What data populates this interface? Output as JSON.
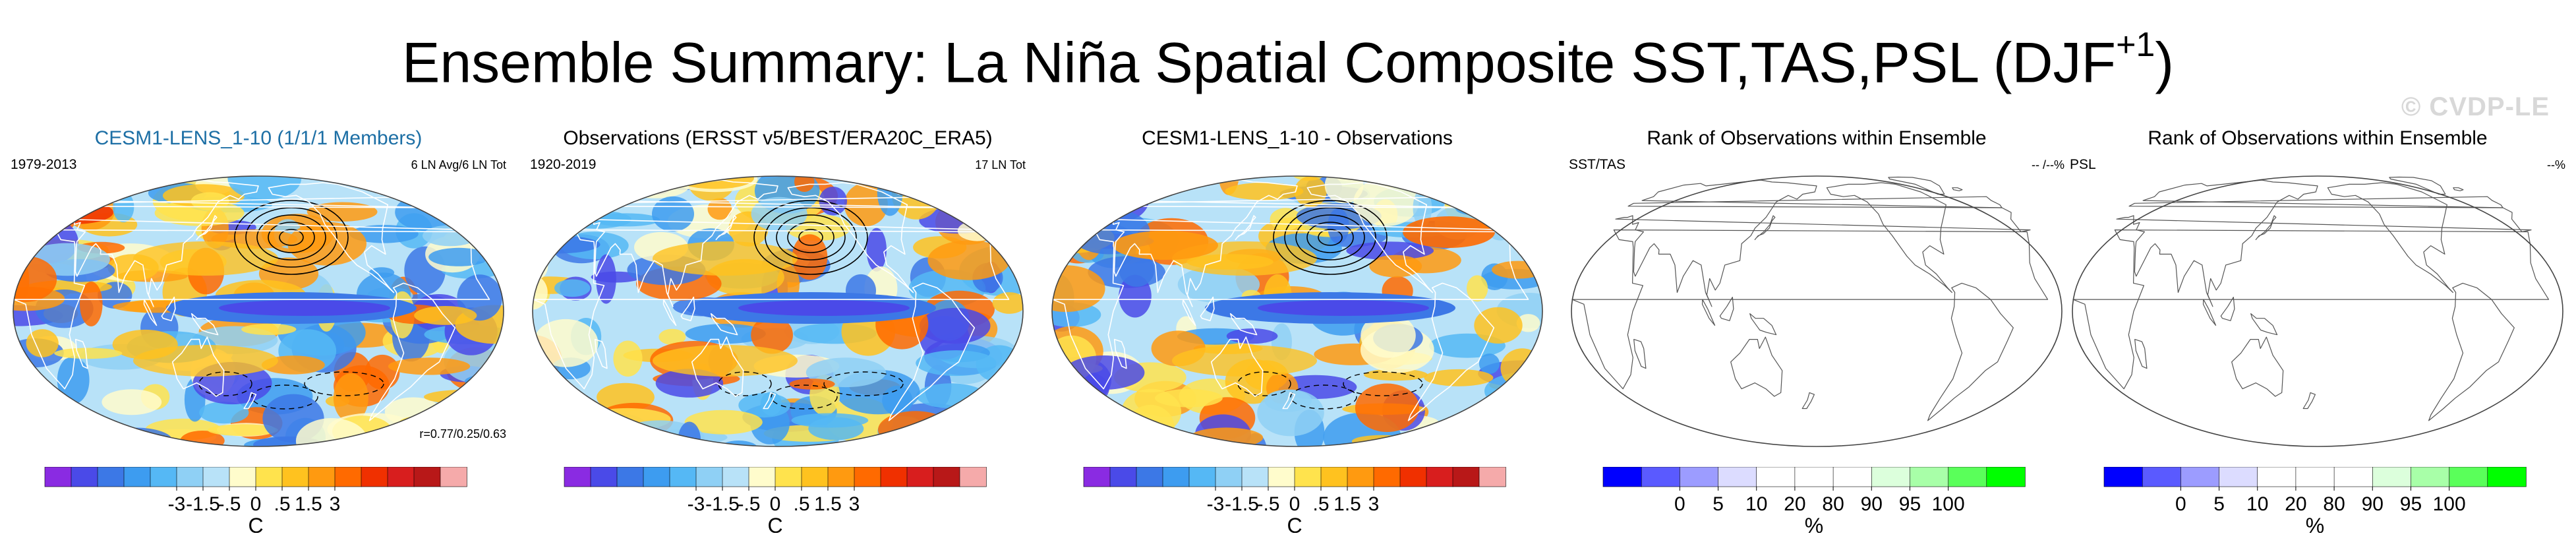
{
  "figure": {
    "title": "Ensemble Summary: La Niña Spatial Composite SST,TAS,PSL (DJF",
    "title_sup": "+1",
    "title_close": ")",
    "watermark": "© CVDP-LE"
  },
  "panels": [
    {
      "id": "ensemble",
      "title": "CESM1-LENS_1-10 (1/1/1 Members)",
      "left_label": "1979-2013",
      "right_label": "6 LN Avg/6 LN Tot",
      "bottom_right": "r=0.77/0.25/0.63",
      "map": "anomaly-a"
    },
    {
      "id": "observations",
      "title": "Observations (ERSST v5/BEST/ERA20C_ERA5)",
      "left_label": "1920-2019",
      "right_label": "17 LN Tot",
      "bottom_right": "",
      "map": "anomaly-b"
    },
    {
      "id": "difference",
      "title": "CESM1-LENS_1-10 - Observations",
      "left_label": "",
      "right_label": "",
      "bottom_right": "",
      "map": "anomaly-c"
    },
    {
      "id": "rank-sst-tas",
      "title": "Rank of Observations within Ensemble",
      "left_label": "SST/TAS",
      "right_label": "-- /--%",
      "bottom_right": "",
      "map": "blank"
    },
    {
      "id": "rank-psl",
      "title": "Rank of Observations within Ensemble",
      "left_label": "PSL",
      "right_label": "--%",
      "bottom_right": "",
      "map": "blank"
    }
  ],
  "chart_data": [
    {
      "type": "heatmap",
      "title": "CESM1-LENS_1-10 (1/1/1 Members)",
      "period": "1979-2013",
      "annotation": "6 LN Avg/6 LN Tot",
      "pattern_correlation": "r=0.77/0.25/0.63",
      "variables": [
        "SST",
        "TAS",
        "PSL"
      ],
      "colorbar": {
        "tick_labels": [
          "-3",
          "-1.5",
          "-.5",
          "0",
          ".5",
          "1.5",
          "3"
        ],
        "unit": "C",
        "colors": [
          "#8a2be2",
          "#4a4ae8",
          "#3c78e6",
          "#3d9cf0",
          "#55b8f5",
          "#8fd0f5",
          "#b8e2f8",
          "#fffccc",
          "#ffe34d",
          "#ffc21f",
          "#ff9a10",
          "#ff6a00",
          "#f03000",
          "#d81e1e",
          "#b81818",
          "#f5aaaa"
        ]
      }
    },
    {
      "type": "heatmap",
      "title": "Observations (ERSST v5/BEST/ERA20C_ERA5)",
      "period": "1920-2019",
      "annotation": "17 LN Tot",
      "variables": [
        "SST",
        "TAS",
        "PSL"
      ],
      "colorbar": {
        "tick_labels": [
          "-3",
          "-1.5",
          "-.5",
          "0",
          ".5",
          "1.5",
          "3"
        ],
        "unit": "C",
        "colors": [
          "#8a2be2",
          "#4a4ae8",
          "#3c78e6",
          "#3d9cf0",
          "#55b8f5",
          "#8fd0f5",
          "#b8e2f8",
          "#fffccc",
          "#ffe34d",
          "#ffc21f",
          "#ff9a10",
          "#ff6a00",
          "#f03000",
          "#d81e1e",
          "#b81818",
          "#f5aaaa"
        ]
      }
    },
    {
      "type": "heatmap",
      "title": "CESM1-LENS_1-10 - Observations",
      "variables": [
        "SST",
        "TAS",
        "PSL"
      ],
      "colorbar": {
        "tick_labels": [
          "-3",
          "-1.5",
          "-.5",
          "0",
          ".5",
          "1.5",
          "3"
        ],
        "unit": "C",
        "colors": [
          "#8a2be2",
          "#4a4ae8",
          "#3c78e6",
          "#3d9cf0",
          "#55b8f5",
          "#8fd0f5",
          "#b8e2f8",
          "#fffccc",
          "#ffe34d",
          "#ffc21f",
          "#ff9a10",
          "#ff6a00",
          "#f03000",
          "#d81e1e",
          "#b81818",
          "#f5aaaa"
        ]
      }
    },
    {
      "type": "heatmap",
      "title": "Rank of Observations within Ensemble",
      "variables": [
        "SST",
        "TAS"
      ],
      "annotation": "-- /--%",
      "colorbar": {
        "tick_labels": [
          "0",
          "5",
          "10",
          "20",
          "80",
          "90",
          "95",
          "100"
        ],
        "unit": "%",
        "colors": [
          "#0000ff",
          "#5a5aff",
          "#9c9cff",
          "#dcdcff",
          "#ffffff",
          "#ffffff",
          "#ffffff",
          "#dcffdc",
          "#a8ffa8",
          "#5aff5a",
          "#00ff00"
        ]
      }
    },
    {
      "type": "heatmap",
      "title": "Rank of Observations within Ensemble",
      "variables": [
        "PSL"
      ],
      "annotation": "--%",
      "colorbar": {
        "tick_labels": [
          "0",
          "5",
          "10",
          "20",
          "80",
          "90",
          "95",
          "100"
        ],
        "unit": "%",
        "colors": [
          "#0000ff",
          "#5a5aff",
          "#9c9cff",
          "#dcdcff",
          "#ffffff",
          "#ffffff",
          "#ffffff",
          "#dcffdc",
          "#a8ffa8",
          "#5aff5a",
          "#00ff00"
        ]
      }
    }
  ]
}
